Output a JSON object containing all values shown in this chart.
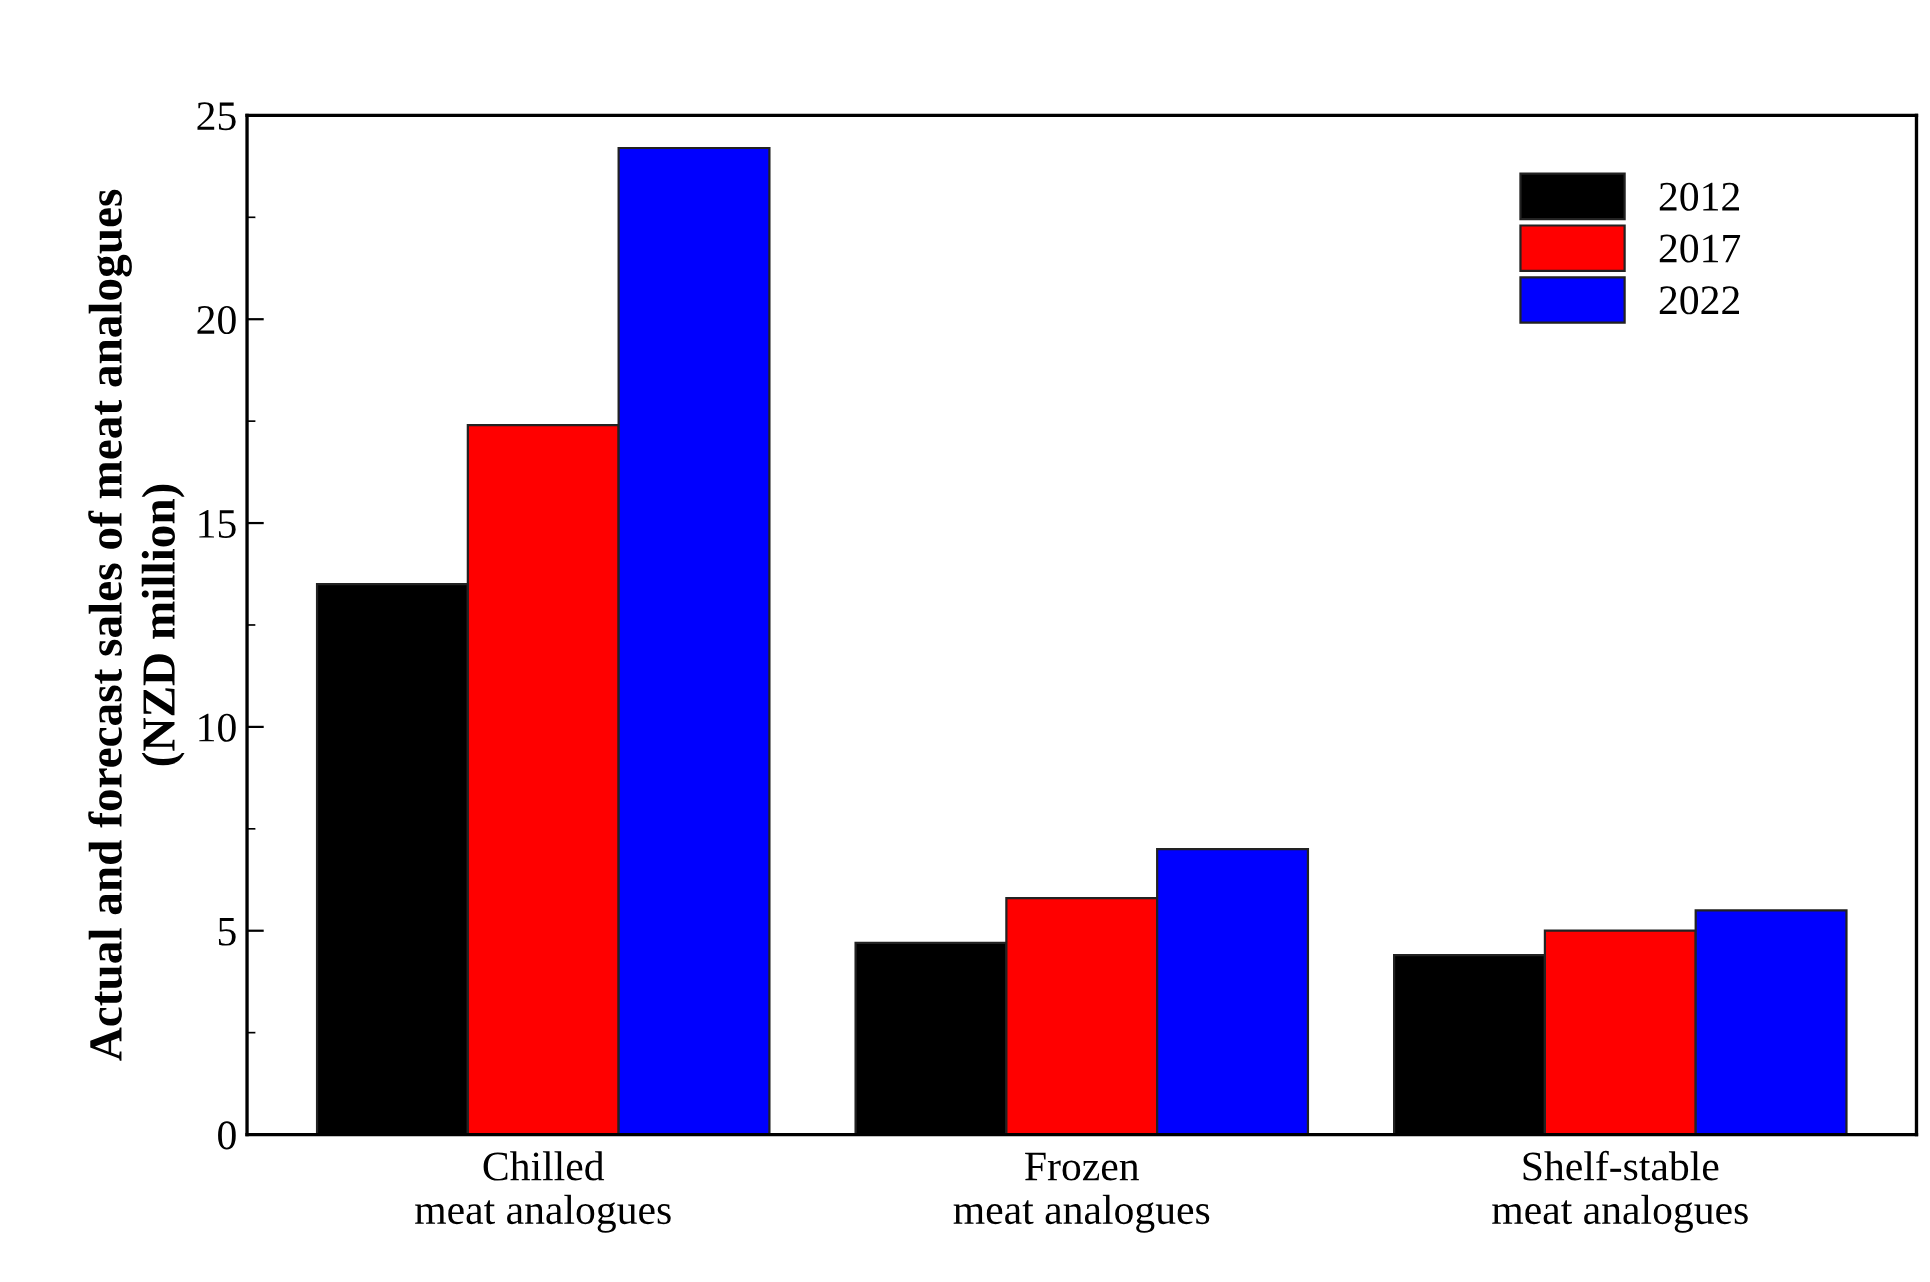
{
  "chart_data": {
    "type": "bar",
    "ylabel": "Actual and forecast sales of meat analogues\n(NZD million)",
    "categories": [
      "Chilled\nmeat analogues",
      "Frozen\nmeat analogues",
      "Shelf-stable\nmeat analogues"
    ],
    "series": [
      {
        "name": "2012",
        "color": "#000000",
        "values": [
          13.5,
          4.7,
          4.4
        ]
      },
      {
        "name": "2017",
        "color": "#ff0000",
        "values": [
          17.4,
          5.8,
          5.0
        ]
      },
      {
        "name": "2022",
        "color": "#0000ff",
        "values": [
          24.2,
          7.0,
          5.5
        ]
      }
    ],
    "ylim": [
      0,
      25
    ],
    "yticks": [
      0,
      5,
      10,
      15,
      20,
      25
    ],
    "grid": false,
    "legend": "top right"
  }
}
